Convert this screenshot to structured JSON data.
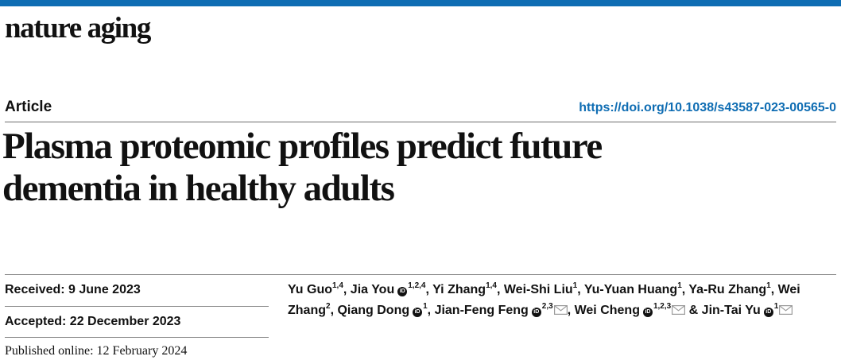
{
  "colors": {
    "accent": "#0f6db3",
    "text": "#111111"
  },
  "journal": {
    "name": "nature aging"
  },
  "article": {
    "type": "Article",
    "doi": "https://doi.org/10.1038/s43587-023-00565-0",
    "title_line1": "Plasma proteomic profiles predict future",
    "title_line2": "dementia in healthy adults"
  },
  "dates": {
    "received": "Received: 9 June 2023",
    "accepted": "Accepted: 22 December 2023",
    "published": "Published online: 12 February 2024"
  },
  "authors": [
    {
      "name": "Yu Guo",
      "aff": "1,4",
      "orcid": false,
      "corresponding": false,
      "sep": ", "
    },
    {
      "name": "Jia You",
      "aff": "1,2,4",
      "orcid": true,
      "corresponding": false,
      "sep": ", "
    },
    {
      "name": "Yi Zhang",
      "aff": "1,4",
      "orcid": false,
      "corresponding": false,
      "sep": ", "
    },
    {
      "name": "Wei-Shi Liu",
      "aff": "1",
      "orcid": false,
      "corresponding": false,
      "sep": ", "
    },
    {
      "name": "Yu-Yuan Huang",
      "aff": "1",
      "orcid": false,
      "corresponding": false,
      "sep": ", "
    },
    {
      "name": "Ya-Ru Zhang",
      "aff": "1",
      "orcid": false,
      "corresponding": false,
      "sep": ", "
    },
    {
      "name": "Wei Zhang",
      "aff": "2",
      "orcid": false,
      "corresponding": false,
      "sep": ", "
    },
    {
      "name": "Qiang Dong",
      "aff": "1",
      "orcid": true,
      "corresponding": false,
      "sep": ", "
    },
    {
      "name": "Jian-Feng Feng",
      "aff": "2,3",
      "orcid": true,
      "corresponding": true,
      "sep": ", "
    },
    {
      "name": "Wei Cheng",
      "aff": "1,2,3",
      "orcid": true,
      "corresponding": true,
      "sep": " & "
    },
    {
      "name": "Jin-Tai Yu",
      "aff": "1",
      "orcid": true,
      "corresponding": true,
      "sep": ""
    }
  ],
  "icons": {
    "orcid": "orcid-icon",
    "mail": "mail-icon"
  },
  "orcid_glyph": "iD"
}
